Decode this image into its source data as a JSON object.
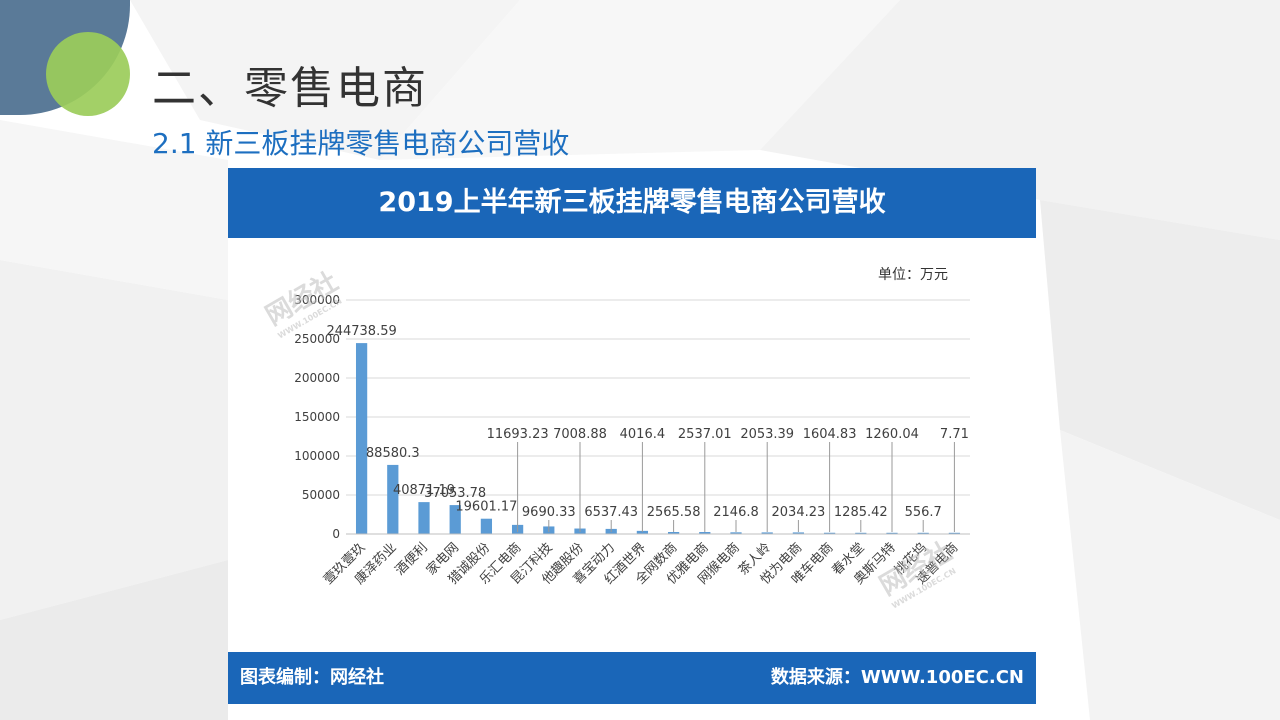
{
  "slide": {
    "title": "二、零售电商",
    "subtitle": "2.1 新三板挂牌零售电商公司营收"
  },
  "card": {
    "header": "2019上半年新三板挂牌零售电商公司营收",
    "unit": "单位：万元",
    "footer_left": "图表编制：网经社",
    "footer_right": "数据来源：WWW.100EC.CN",
    "watermark": "网经社",
    "watermark_sub": "WWW.100EC.CN"
  },
  "colors": {
    "accent": "#1a66b8",
    "bar": "#5b9bd5",
    "title_text": "#333333",
    "subtitle_text": "#1d6fc0"
  },
  "chart_data": {
    "type": "bar",
    "title": "2019上半年新三板挂牌零售电商公司营收",
    "xlabel": "",
    "ylabel": "",
    "ylim": [
      0,
      300000
    ],
    "yticks": [
      "0",
      "50000",
      "100000",
      "150000",
      "200000",
      "250000",
      "300000"
    ],
    "grid": true,
    "categories": [
      "壹玖壹玖",
      "康泽药业",
      "酒便利",
      "家电网",
      "猎诚股份",
      "乐汇电商",
      "昆汀科技",
      "他趣股份",
      "喜宝动力",
      "红酒世界",
      "全网数商",
      "优雅电商",
      "网猴电商",
      "茶人岭",
      "悦为电商",
      "唯车电商",
      "春水堂",
      "奥斯马特",
      "桃花坞",
      "速普电商"
    ],
    "values": [
      244738.59,
      88580.3,
      40871.19,
      37053.78,
      19601.17,
      11693.23,
      9690.33,
      7008.88,
      6537.43,
      4016.4,
      2565.58,
      2537.01,
      2146.8,
      2053.39,
      2034.23,
      1604.83,
      1285.42,
      1260.04,
      556.7,
      7.71
    ],
    "data_labels": [
      "244738.59",
      "88580.3",
      "40871.19",
      "37053.78",
      "19601.17",
      "11693.23",
      "9690.33",
      "7008.88",
      "6537.43",
      "4016.4",
      "2565.58",
      "2537.01",
      "2146.8",
      "2053.39",
      "2034.23",
      "1604.83",
      "1285.42",
      "1260.04",
      "556.7",
      "7.71"
    ]
  }
}
